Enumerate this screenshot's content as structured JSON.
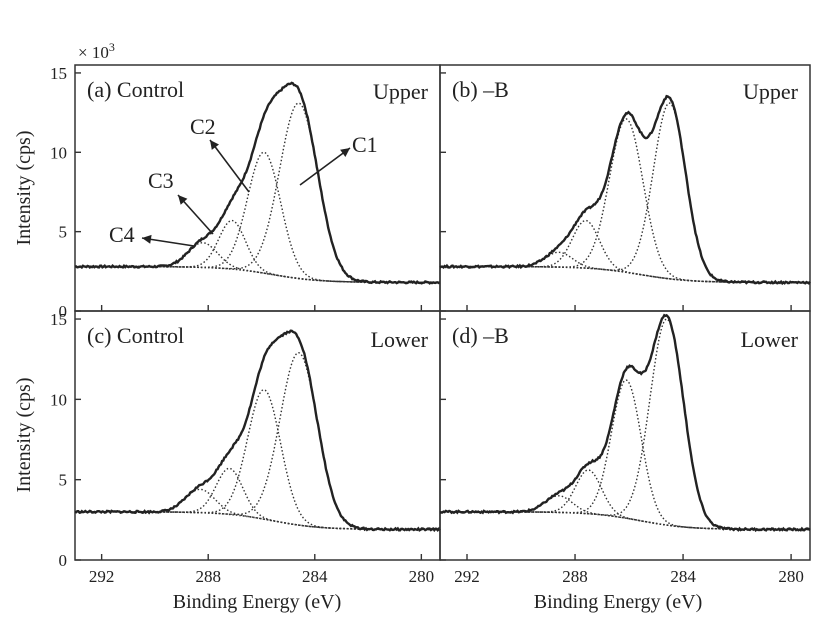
{
  "figure": {
    "scale_note_prefix": "× 10",
    "scale_note_exponent": "3",
    "ylabel": "Intensity (cps)",
    "xlabel": "Binding Energy (eV)"
  },
  "chart_data": [
    {
      "type": "line",
      "panel_label": "(a)  Control",
      "position_label": "Upper",
      "xlabel": "Binding Energy (eV)",
      "ylabel": "Intensity (cps)",
      "xlim": [
        293,
        279.3
      ],
      "ylim": [
        0,
        15.5
      ],
      "x_reversed": true,
      "xticks": [
        292,
        288,
        284,
        280
      ],
      "yticks": [
        0,
        5,
        10,
        15
      ],
      "background": {
        "left": 2.8,
        "right": 1.8
      },
      "peaks": [
        {
          "name": "C1",
          "center": 284.6,
          "height": 13.1,
          "sigma": 0.72
        },
        {
          "name": "C2",
          "center": 285.9,
          "height": 10.0,
          "sigma": 0.62
        },
        {
          "name": "C3",
          "center": 287.1,
          "height": 5.7,
          "sigma": 0.5
        },
        {
          "name": "C4",
          "center": 288.2,
          "height": 4.3,
          "sigma": 0.55
        }
      ],
      "annotations": [
        "C1",
        "C2",
        "C3",
        "C4"
      ]
    },
    {
      "type": "line",
      "panel_label": "(b)  –B",
      "position_label": "Upper",
      "xlabel": "Binding Energy (eV)",
      "ylabel": "Intensity (cps)",
      "xlim": [
        293,
        279.3
      ],
      "ylim": [
        0,
        15.5
      ],
      "x_reversed": true,
      "xticks": [
        292,
        288,
        284,
        280
      ],
      "yticks": [
        0,
        5,
        10,
        15
      ],
      "background": {
        "left": 2.8,
        "right": 1.8
      },
      "peaks": [
        {
          "name": "C1",
          "center": 284.5,
          "height": 13.1,
          "sigma": 0.6
        },
        {
          "name": "C2",
          "center": 286.1,
          "height": 12.1,
          "sigma": 0.62
        },
        {
          "name": "C3",
          "center": 287.6,
          "height": 5.7,
          "sigma": 0.5
        },
        {
          "name": "C4",
          "center": 288.6,
          "height": 3.7,
          "sigma": 0.5
        }
      ],
      "annotations": []
    },
    {
      "type": "line",
      "panel_label": "(c)  Control",
      "position_label": "Lower",
      "xlabel": "Binding Energy (eV)",
      "ylabel": "Intensity (cps)",
      "xlim": [
        293,
        279.3
      ],
      "ylim": [
        0,
        15.5
      ],
      "x_reversed": true,
      "xticks": [
        292,
        288,
        284,
        280
      ],
      "yticks": [
        0,
        5,
        10,
        15
      ],
      "background": {
        "left": 3.0,
        "right": 1.9
      },
      "peaks": [
        {
          "name": "C1",
          "center": 284.6,
          "height": 12.9,
          "sigma": 0.7
        },
        {
          "name": "C2",
          "center": 285.9,
          "height": 10.6,
          "sigma": 0.62
        },
        {
          "name": "C3",
          "center": 287.2,
          "height": 5.7,
          "sigma": 0.5
        },
        {
          "name": "C4",
          "center": 288.3,
          "height": 4.4,
          "sigma": 0.55
        }
      ],
      "annotations": []
    },
    {
      "type": "line",
      "panel_label": "(d)  –B",
      "position_label": "Lower",
      "xlabel": "Binding Energy (eV)",
      "ylabel": "Intensity (cps)",
      "xlim": [
        293,
        279.3
      ],
      "ylim": [
        0,
        15.5
      ],
      "x_reversed": true,
      "xticks": [
        292,
        288,
        284,
        280
      ],
      "yticks": [
        0,
        5,
        10,
        15
      ],
      "background": {
        "left": 3.0,
        "right": 1.9
      },
      "peaks": [
        {
          "name": "C1",
          "center": 284.6,
          "height": 15.0,
          "sigma": 0.62
        },
        {
          "name": "C2",
          "center": 286.1,
          "height": 11.2,
          "sigma": 0.55
        },
        {
          "name": "C3",
          "center": 287.5,
          "height": 5.6,
          "sigma": 0.48
        },
        {
          "name": "C4",
          "center": 288.6,
          "height": 4.0,
          "sigma": 0.5
        }
      ],
      "annotations": []
    }
  ]
}
